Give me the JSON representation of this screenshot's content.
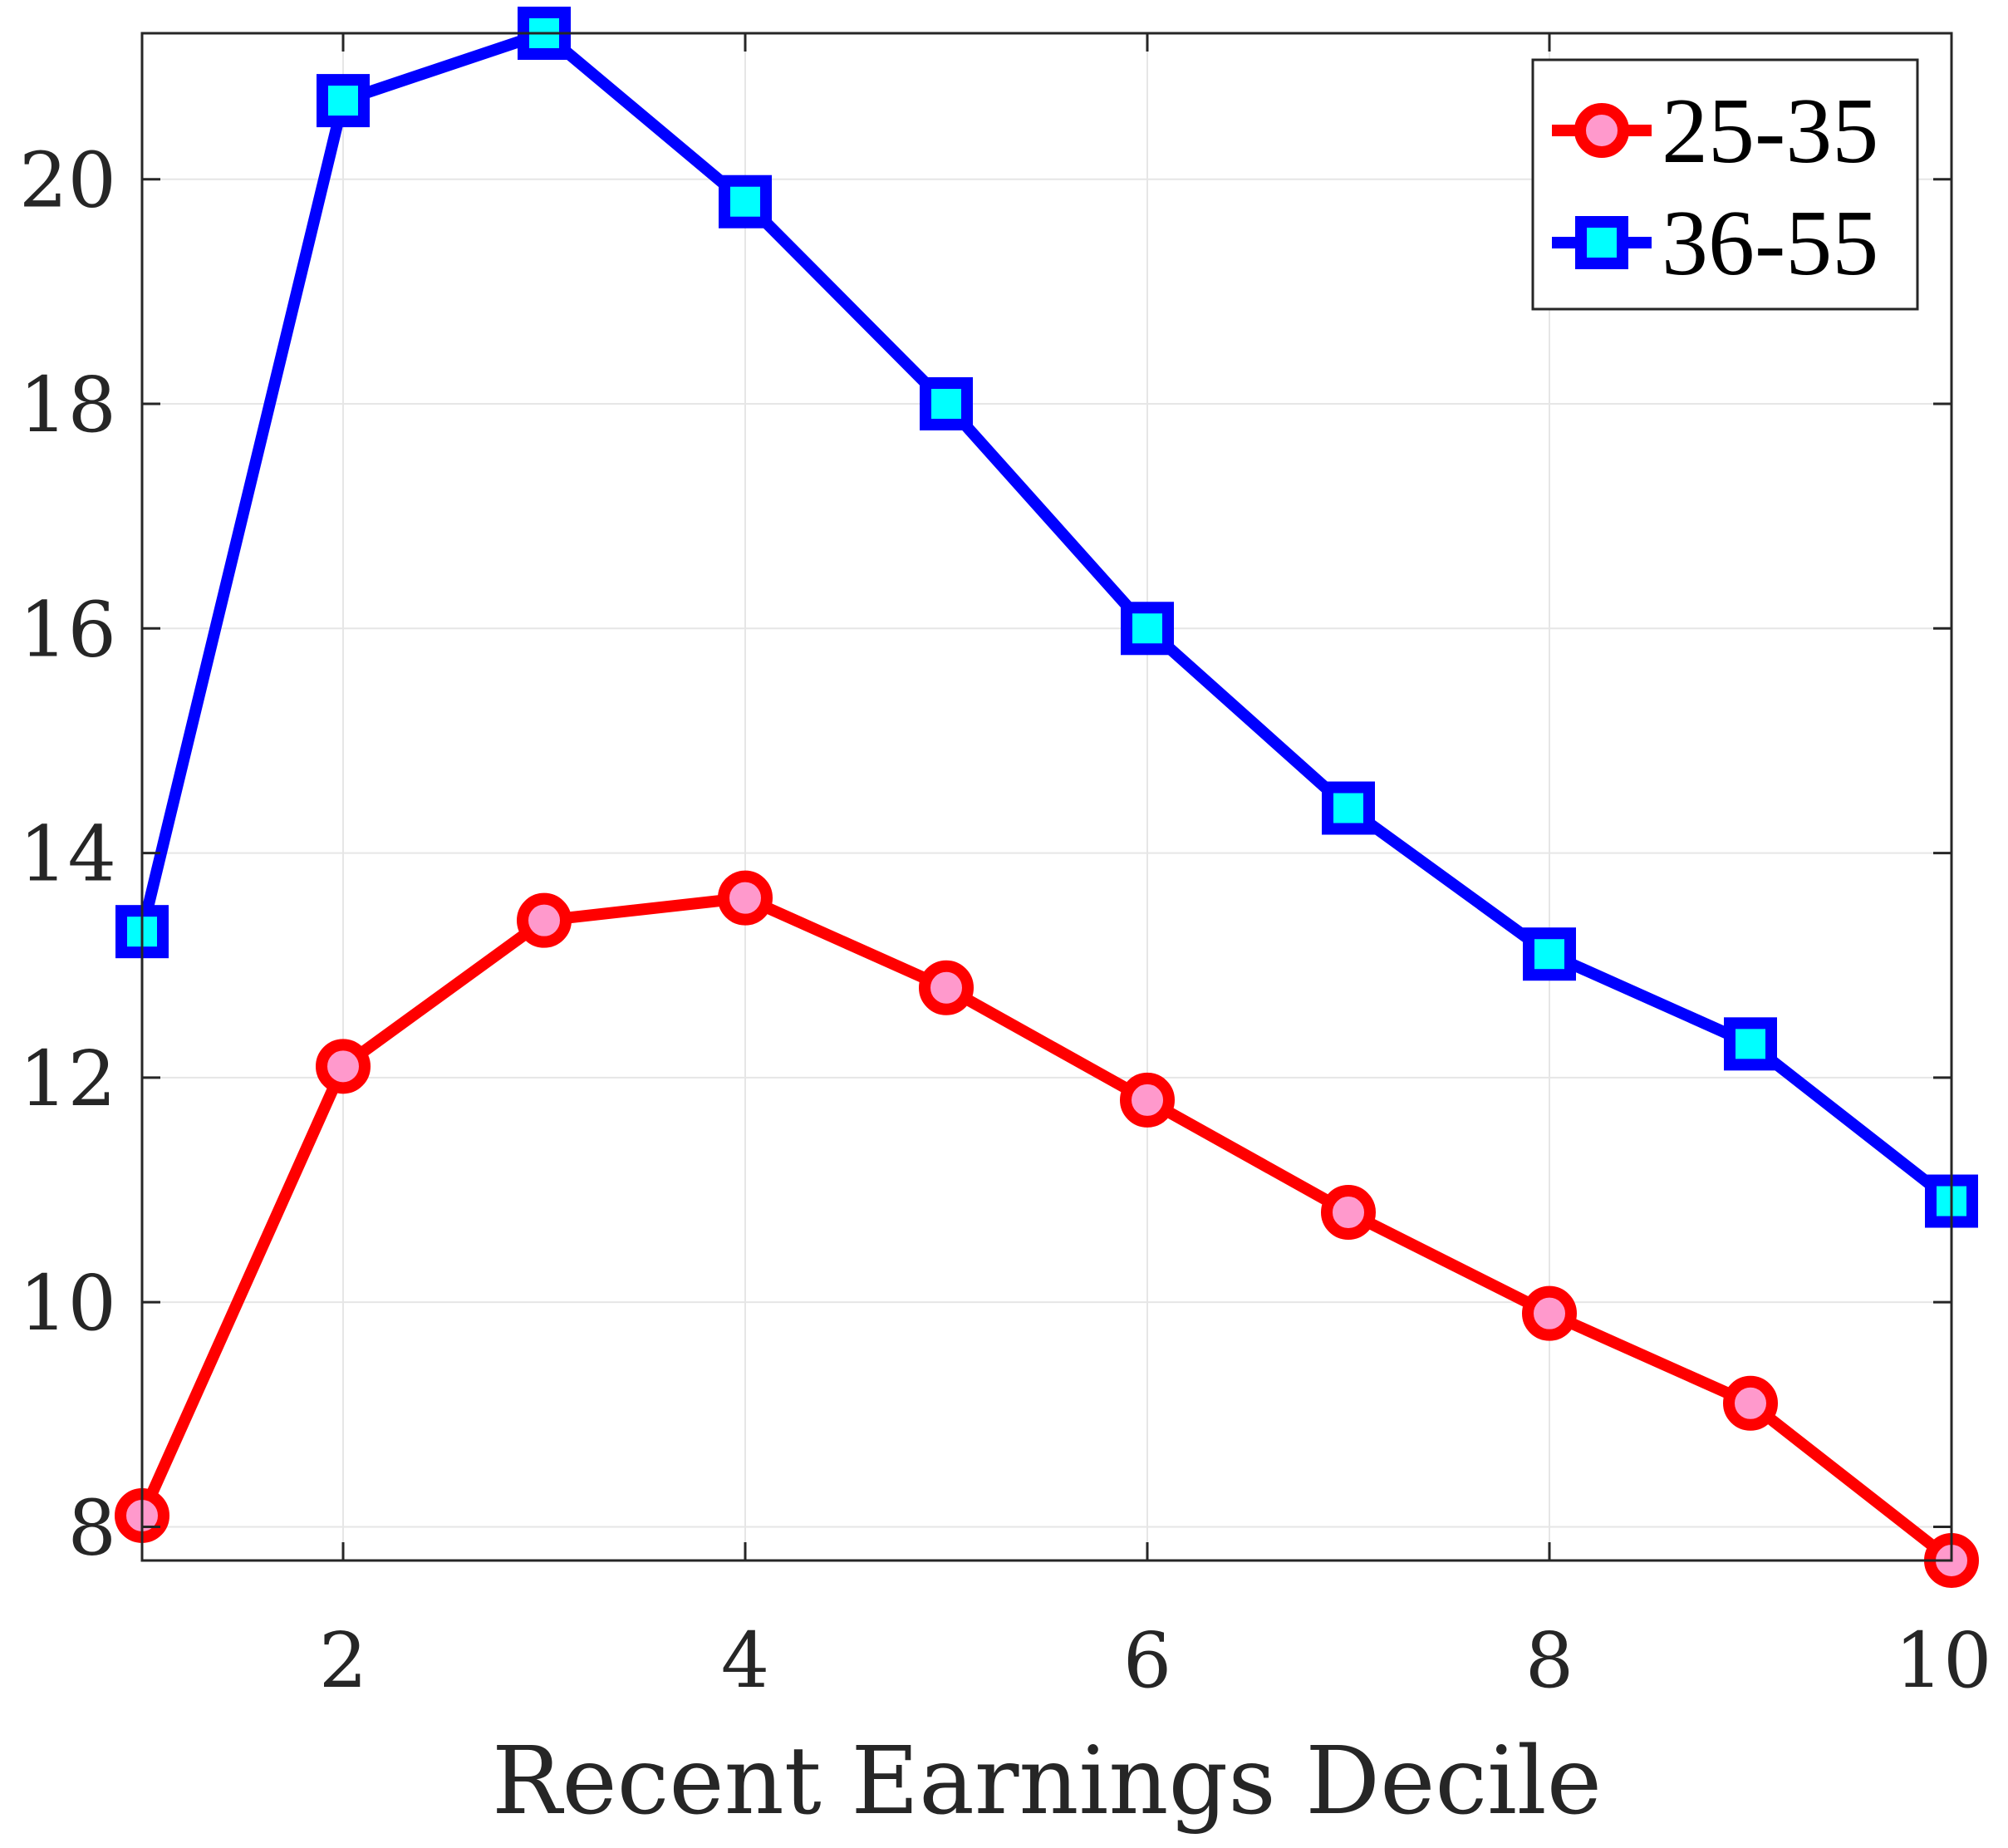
{
  "chart_data": {
    "type": "line",
    "title": "",
    "xlabel": "Recent Earnings Decile",
    "ylabel": "",
    "x": [
      1,
      2,
      3,
      4,
      5,
      6,
      7,
      8,
      9,
      10
    ],
    "xlim": [
      1,
      10
    ],
    "ylim": [
      7.7,
      21.3
    ],
    "xticks": [
      2,
      4,
      6,
      8,
      10
    ],
    "yticks": [
      8,
      10,
      12,
      14,
      16,
      18,
      20
    ],
    "grid": true,
    "legend_position": "top-right",
    "series": [
      {
        "name": "25-35",
        "values": [
          8.1,
          12.1,
          13.4,
          13.6,
          12.8,
          11.8,
          10.8,
          9.9,
          9.1,
          7.7
        ],
        "line_color": "#ff0000",
        "marker": "circle",
        "marker_fill": "#ff99cc"
      },
      {
        "name": "36-55",
        "values": [
          13.3,
          20.7,
          21.3,
          19.8,
          18.0,
          16.0,
          14.4,
          13.1,
          12.3,
          10.9
        ],
        "line_color": "#0000ff",
        "marker": "square",
        "marker_fill": "#00ffff"
      }
    ]
  }
}
